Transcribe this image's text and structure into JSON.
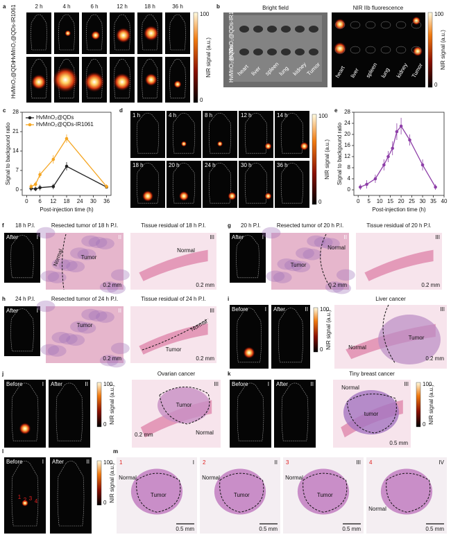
{
  "chart_data": [
    {
      "type": "line",
      "x_label": "Post-injection time (h)",
      "y_label": "Signal to backgound ratio",
      "x": [
        2,
        4,
        6,
        12,
        18,
        36
      ],
      "series": [
        {
          "name": "HvMnO₂@QDs",
          "color": "#222222",
          "values": [
            0.5,
            0.3,
            0.8,
            1.2,
            8.5,
            1.0
          ],
          "errors": [
            1,
            0.8,
            1,
            1,
            1.5,
            0.5
          ]
        },
        {
          "name": "HvMnO₂@QDs-IR1061",
          "color": "#f5a623",
          "values": [
            1.2,
            2,
            5.5,
            11,
            18.5,
            1.2
          ],
          "errors": [
            1,
            1,
            1.2,
            1.5,
            1.5,
            0.8
          ]
        }
      ],
      "xlim": [
        -2,
        38
      ],
      "xticks": [
        0,
        6,
        12,
        18,
        24,
        30,
        36
      ],
      "ylim": [
        -2,
        28
      ],
      "yticks": [
        0,
        7,
        14,
        21,
        28
      ],
      "legend": "upper-left"
    },
    {
      "type": "line",
      "x_label": "Post-injection time (h)",
      "y_label": "Signal to backgound ratio",
      "x": [
        1,
        4,
        8,
        12,
        14,
        16,
        18,
        20,
        24,
        30,
        36
      ],
      "series": [
        {
          "color": "#8e3fa8",
          "values": [
            1,
            2,
            4,
            9,
            12,
            15,
            21,
            23,
            18,
            9,
            1
          ],
          "errors": [
            1,
            1.5,
            1.5,
            2,
            2,
            2.5,
            3,
            3,
            2,
            2,
            1
          ]
        }
      ],
      "xlim": [
        -2,
        40
      ],
      "xticks": [
        0,
        5,
        10,
        15,
        20,
        25,
        30,
        35,
        40
      ],
      "ylim": [
        -2,
        28
      ],
      "yticks": [
        0,
        4,
        8,
        12,
        16,
        20,
        24,
        28
      ]
    }
  ],
  "panels": {
    "a": {
      "label": "a",
      "times": [
        "2 h",
        "4 h",
        "6 h",
        "12 h",
        "18 h",
        "36 h"
      ],
      "rows": [
        "HvMnO₂@QDs-IR1061",
        "HvMnO₂@QDs"
      ],
      "colorbar": {
        "max": 100,
        "min": 0,
        "title": "NIR signal (a.u.)"
      }
    },
    "b": {
      "label": "b",
      "bright_title": "Bright field",
      "nir_title": "NIR IIb fluorescence",
      "organs": [
        "heart",
        "liver",
        "spleen",
        "lung",
        "kidney",
        "Tumor"
      ],
      "colorbar": {
        "max": 100,
        "min": 0,
        "title": "NIR signal (a.u.)"
      }
    },
    "c": {
      "label": "c"
    },
    "d": {
      "label": "d",
      "times": [
        "1 h",
        "4 h",
        "8 h",
        "12 h",
        "14 h",
        "18 h",
        "20 h",
        "24 h",
        "30 h",
        "36 h"
      ],
      "colorbar": {
        "max": 100,
        "min": 0,
        "title": "NIR signal (a.u.)"
      }
    },
    "e": {
      "label": "e"
    },
    "f": {
      "label": "f",
      "time": "18 h P.I.",
      "resected_title": "Resected tumor of 18 h P.I.",
      "residual_title": "Tissue residual of 18 h P.I.",
      "image_labels": [
        "After",
        "I",
        "II",
        "III"
      ],
      "annotations": [
        "Normal",
        "Tumor",
        "0.2 mm",
        "Normal",
        "0.2 mm"
      ]
    },
    "g": {
      "label": "g",
      "time": "20 h P.I.",
      "resected_title": "Resected tumor of 20 h P.I.",
      "residual_title": "Tissue residual of 20 h P.I.",
      "image_labels": [
        "After",
        "I",
        "II",
        "III"
      ],
      "annotations": [
        "Normal",
        "Tumor",
        "0.2 mm",
        "0.2 mm"
      ]
    },
    "h": {
      "label": "h",
      "time": "24 h P.I.",
      "resected_title": "Resected tumor of 24 h P.I.",
      "residual_title": "Tissue residual of 24 h P.I.",
      "image_labels": [
        "After",
        "I",
        "II",
        "III"
      ],
      "annotations": [
        "Tumor",
        "0.2 mm",
        "Normal",
        "Tumor",
        "0.2 mm"
      ]
    },
    "i": {
      "label": "i",
      "title": "Liver cancer",
      "image_labels": [
        "Before",
        "I",
        "After",
        "II",
        "III"
      ],
      "annotations": [
        "Normal",
        "Tumor",
        "0.2 mm"
      ],
      "colorbar": {
        "max": 100,
        "min": 0,
        "title": "NIR signal (a.u.)"
      }
    },
    "j": {
      "label": "j",
      "title": "Ovarian  cancer",
      "image_labels": [
        "Before",
        "I",
        "After",
        "II",
        "III"
      ],
      "annotations": [
        "Tumor",
        "0.2 mm",
        "Normal"
      ],
      "colorbar": {
        "max": 100,
        "min": 0,
        "title": "NIR signal (a.u.)"
      }
    },
    "k": {
      "label": "k",
      "title": "Tiny breast cancer",
      "image_labels": [
        "Before",
        "I",
        "After",
        "II",
        "III"
      ],
      "annotations": [
        "Normal",
        "tumor",
        "0.5 mm"
      ],
      "colorbar": {
        "max": 100,
        "min": 0,
        "title": "NIR signal (a.u.)"
      }
    },
    "l": {
      "label": "l",
      "image_labels": [
        "Before",
        "I",
        "After",
        "II"
      ],
      "spots": [
        "1",
        "2",
        "3",
        "4"
      ],
      "colorbar": {
        "max": 100,
        "min": 0,
        "title": "NIR signal (a.u.)"
      }
    },
    "m": {
      "label": "m",
      "sections": [
        {
          "number": "1",
          "roman": "I",
          "annotations": [
            "Normal",
            "Tumor",
            "0.5 mm"
          ]
        },
        {
          "number": "2",
          "roman": "II",
          "annotations": [
            "Normal",
            "Tumor",
            "0.5 mm"
          ]
        },
        {
          "number": "3",
          "roman": "III",
          "annotations": [
            "Normal",
            "Tumor",
            "0.5 mm"
          ]
        },
        {
          "number": "4",
          "roman": "IV",
          "annotations": [
            "Normal",
            "0.5 mm"
          ]
        }
      ]
    }
  }
}
